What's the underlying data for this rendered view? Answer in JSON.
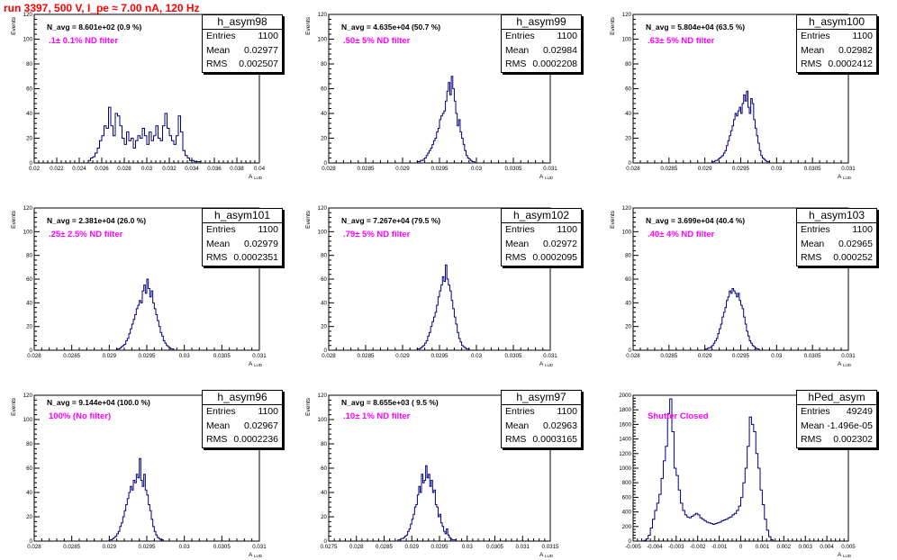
{
  "title": "run 3397,   500 V, I_pe ≈ 7.00 nA, 120 Hz",
  "colors": {
    "hist": "#000080",
    "title": "#ff0000",
    "annotation": "#ff00ff"
  },
  "stat_labels": {
    "entries": "Entries",
    "mean": "Mean",
    "rms": "RMS"
  },
  "chart_data": [
    {
      "type": "bar",
      "name": "h_asym98",
      "navg": "N_avg = 8.601e+02 (0.9 %)",
      "filter": ".1± 0.1% ND filter",
      "stats": {
        "entries": "1100",
        "mean": "0.02977",
        "rms": "0.002507"
      },
      "xlabel": "A",
      "xlabel_sub": "LUD",
      "ylabel": "Events",
      "xlim": [
        0.02,
        0.04
      ],
      "ylim": [
        0,
        120
      ],
      "xticks": [
        0.02,
        0.022,
        0.024,
        0.026,
        0.028,
        0.03,
        0.032,
        0.034,
        0.036,
        0.038,
        0.04
      ],
      "xticklabels": [
        "0.02",
        "0.022",
        "0.024",
        "0.026",
        "0.028",
        "0.03",
        "0.032",
        "0.034",
        "0.036",
        "0.038",
        "0.04"
      ],
      "yticks": [
        0,
        20,
        40,
        60,
        80,
        100,
        120
      ],
      "yticklabels": [
        "0",
        "20",
        "40",
        "60",
        "80",
        "100",
        "120"
      ],
      "bin_start": 0.0248,
      "bin_width": 0.0002,
      "values": [
        2,
        4,
        5,
        8,
        12,
        18,
        22,
        30,
        28,
        45,
        30,
        22,
        40,
        38,
        30,
        20,
        15,
        25,
        18,
        20,
        12,
        18,
        22,
        20,
        28,
        22,
        15,
        25,
        18,
        22,
        30,
        20,
        18,
        30,
        40,
        28,
        22,
        18,
        15,
        22,
        38,
        25,
        10,
        6,
        4,
        2,
        2,
        1,
        1,
        1
      ]
    },
    {
      "type": "bar",
      "name": "h_asym99",
      "navg": "N_avg = 4.635e+04 (50.7 %)",
      "filter": ".50± 5% ND filter",
      "stats": {
        "entries": "1100",
        "mean": "0.02984",
        "rms": "0.0002208"
      },
      "xlabel": "A",
      "xlabel_sub": "LUD",
      "ylabel": "Events",
      "xlim": [
        0.028,
        0.031
      ],
      "ylim": [
        0,
        120
      ],
      "xticks": [
        0.028,
        0.0285,
        0.029,
        0.0295,
        0.03,
        0.0305,
        0.031
      ],
      "xticklabels": [
        "0.028",
        "0.0285",
        "0.029",
        "0.0295",
        "0.03",
        "0.0305",
        "0.031"
      ],
      "yticks": [
        0,
        20,
        40,
        60,
        80,
        100,
        120
      ],
      "yticklabels": [
        "0",
        "20",
        "40",
        "60",
        "80",
        "100",
        "120"
      ],
      "bin_start": 0.0292,
      "bin_width": 2e-05,
      "values": [
        1,
        1,
        2,
        2,
        3,
        4,
        6,
        8,
        10,
        12,
        15,
        18,
        20,
        25,
        28,
        35,
        38,
        40,
        42,
        50,
        58,
        65,
        55,
        70,
        60,
        50,
        40,
        30,
        35,
        25,
        20,
        15,
        10,
        6,
        4,
        3,
        2,
        1,
        1
      ]
    },
    {
      "type": "bar",
      "name": "h_asym100",
      "navg": "N_avg = 5.804e+04 (63.5 %)",
      "filter": ".63± 5% ND filter",
      "stats": {
        "entries": "1100",
        "mean": "0.02982",
        "rms": "0.0002412"
      },
      "xlabel": "A",
      "xlabel_sub": "LUD",
      "ylabel": "Events",
      "xlim": [
        0.028,
        0.031
      ],
      "ylim": [
        0,
        120
      ],
      "xticks": [
        0.028,
        0.0285,
        0.029,
        0.0295,
        0.03,
        0.0305,
        0.031
      ],
      "xticklabels": [
        "0.028",
        "0.0285",
        "0.029",
        "0.0295",
        "0.03",
        "0.0305",
        "0.031"
      ],
      "yticks": [
        0,
        20,
        40,
        60,
        80,
        100,
        120
      ],
      "yticklabels": [
        "0",
        "20",
        "40",
        "60",
        "80",
        "100",
        "120"
      ],
      "bin_start": 0.0291,
      "bin_width": 2e-05,
      "values": [
        1,
        1,
        2,
        2,
        3,
        4,
        5,
        6,
        8,
        10,
        14,
        18,
        22,
        26,
        30,
        35,
        40,
        38,
        42,
        45,
        40,
        48,
        55,
        50,
        58,
        45,
        40,
        52,
        48,
        35,
        28,
        22,
        16,
        10,
        6,
        4,
        3,
        2,
        1,
        1
      ]
    },
    {
      "type": "bar",
      "name": "h_asym101",
      "navg": "N_avg = 2.381e+04 (26.0 %)",
      "filter": ".25± 2.5% ND filter",
      "stats": {
        "entries": "1100",
        "mean": "0.02979",
        "rms": "0.0002351"
      },
      "xlabel": "A",
      "xlabel_sub": "LUD",
      "ylabel": "Events",
      "xlim": [
        0.028,
        0.031
      ],
      "ylim": [
        0,
        120
      ],
      "xticks": [
        0.028,
        0.0285,
        0.029,
        0.0295,
        0.03,
        0.0305,
        0.031
      ],
      "xticklabels": [
        "0.028",
        "0.0285",
        "0.029",
        "0.0295",
        "0.03",
        "0.0305",
        "0.031"
      ],
      "yticks": [
        0,
        20,
        40,
        60,
        80,
        100,
        120
      ],
      "yticklabels": [
        "0",
        "20",
        "40",
        "60",
        "80",
        "100",
        "120"
      ],
      "bin_start": 0.0291,
      "bin_width": 2e-05,
      "values": [
        1,
        1,
        2,
        3,
        4,
        5,
        8,
        10,
        14,
        18,
        22,
        26,
        30,
        35,
        38,
        42,
        40,
        50,
        55,
        48,
        60,
        52,
        45,
        50,
        40,
        35,
        30,
        25,
        20,
        15,
        12,
        8,
        6,
        4,
        3,
        2,
        1,
        1
      ]
    },
    {
      "type": "bar",
      "name": "h_asym102",
      "navg": "N_avg = 7.267e+04 (79.5 %)",
      "filter": ".79± 5% ND filter",
      "stats": {
        "entries": "1100",
        "mean": "0.02972",
        "rms": "0.0002095"
      },
      "xlabel": "A",
      "xlabel_sub": "LUD",
      "ylabel": "Events",
      "xlim": [
        0.028,
        0.031
      ],
      "ylim": [
        0,
        120
      ],
      "xticks": [
        0.028,
        0.0285,
        0.029,
        0.0295,
        0.03,
        0.0305,
        0.031
      ],
      "xticklabels": [
        "0.028",
        "0.0285",
        "0.029",
        "0.0295",
        "0.03",
        "0.0305",
        "0.031"
      ],
      "yticks": [
        0,
        20,
        40,
        60,
        80,
        100,
        120
      ],
      "yticklabels": [
        "0",
        "20",
        "40",
        "60",
        "80",
        "100",
        "120"
      ],
      "bin_start": 0.0292,
      "bin_width": 2e-05,
      "values": [
        1,
        1,
        2,
        3,
        4,
        6,
        8,
        12,
        15,
        20,
        24,
        28,
        32,
        38,
        45,
        50,
        55,
        62,
        58,
        72,
        60,
        55,
        50,
        42,
        35,
        28,
        22,
        15,
        10,
        7,
        4,
        3,
        2,
        1,
        1
      ]
    },
    {
      "type": "bar",
      "name": "h_asym103",
      "navg": "N_avg = 3.699e+04 (40.4 %)",
      "filter": ".40± 4% ND filter",
      "stats": {
        "entries": "1100",
        "mean": "0.02965",
        "rms": "0.000252"
      },
      "xlabel": "A",
      "xlabel_sub": "LUD",
      "ylabel": "Events",
      "xlim": [
        0.028,
        0.031
      ],
      "ylim": [
        0,
        120
      ],
      "xticks": [
        0.028,
        0.0285,
        0.029,
        0.0295,
        0.03,
        0.0305,
        0.031
      ],
      "xticklabels": [
        "0.028",
        "0.0285",
        "0.029",
        "0.0295",
        "0.03",
        "0.0305",
        "0.031"
      ],
      "yticks": [
        0,
        20,
        40,
        60,
        80,
        100,
        120
      ],
      "yticklabels": [
        "0",
        "20",
        "40",
        "60",
        "80",
        "100",
        "120"
      ],
      "bin_start": 0.029,
      "bin_width": 2e-05,
      "values": [
        1,
        1,
        2,
        2,
        3,
        4,
        6,
        8,
        10,
        14,
        18,
        22,
        28,
        32,
        36,
        42,
        45,
        50,
        48,
        52,
        50,
        48,
        45,
        48,
        42,
        38,
        35,
        28,
        22,
        16,
        12,
        8,
        6,
        4,
        3,
        2,
        1,
        1
      ]
    },
    {
      "type": "bar",
      "name": "h_asym96",
      "navg": "N_avg = 9.144e+04 (100.0 %)",
      "filter": "100% (No filter)",
      "stats": {
        "entries": "1100",
        "mean": "0.02967",
        "rms": "0.0002236"
      },
      "xlabel": "A",
      "xlabel_sub": "LUD",
      "ylabel": "Events",
      "xlim": [
        0.028,
        0.031
      ],
      "ylim": [
        0,
        120
      ],
      "xticks": [
        0.028,
        0.0285,
        0.029,
        0.0295,
        0.03,
        0.0305,
        0.031
      ],
      "xticklabels": [
        "0.028",
        "0.0285",
        "0.029",
        "0.0295",
        "0.03",
        "0.0305",
        "0.031"
      ],
      "yticks": [
        0,
        20,
        40,
        60,
        80,
        100,
        120
      ],
      "yticklabels": [
        "0",
        "20",
        "40",
        "60",
        "80",
        "100",
        "120"
      ],
      "bin_start": 0.029,
      "bin_width": 2e-05,
      "values": [
        1,
        1,
        2,
        3,
        4,
        6,
        8,
        12,
        15,
        20,
        25,
        30,
        35,
        40,
        45,
        42,
        50,
        48,
        55,
        52,
        68,
        50,
        45,
        55,
        42,
        38,
        30,
        25,
        18,
        12,
        8,
        5,
        3,
        2,
        1,
        1
      ]
    },
    {
      "type": "bar",
      "name": "h_asym97",
      "navg": "N_avg = 8.655e+03 ( 9.5 %)",
      "filter": ".10± 1% ND filter",
      "stats": {
        "entries": "1100",
        "mean": "0.02963",
        "rms": "0.0003165"
      },
      "xlabel": "A",
      "xlabel_sub": "LUD",
      "ylabel": "Events",
      "xlim": [
        0.0275,
        0.0315
      ],
      "ylim": [
        0,
        120
      ],
      "xticks": [
        0.0275,
        0.028,
        0.0285,
        0.029,
        0.0295,
        0.03,
        0.0305,
        0.031,
        0.0315
      ],
      "xticklabels": [
        "0.0275",
        "0.028",
        "0.0285",
        "0.029",
        "0.0295",
        "0.03",
        "0.0305",
        "0.031",
        "0.0315"
      ],
      "yticks": [
        0,
        20,
        40,
        60,
        80,
        100,
        120
      ],
      "yticklabels": [
        "0",
        "20",
        "40",
        "60",
        "80",
        "100",
        "120"
      ],
      "bin_start": 0.02875,
      "bin_width": 2.5e-05,
      "values": [
        1,
        1,
        2,
        2,
        3,
        4,
        5,
        8,
        10,
        14,
        18,
        22,
        28,
        30,
        38,
        45,
        40,
        55,
        48,
        50,
        62,
        52,
        55,
        45,
        50,
        40,
        42,
        30,
        28,
        20,
        22,
        15,
        12,
        8,
        6,
        10,
        5,
        3,
        2,
        1,
        1,
        1
      ]
    },
    {
      "type": "bar",
      "name": "hPed_asym",
      "navg": "",
      "filter": "Shutter Closed",
      "stats": {
        "entries": "49249",
        "mean": "-1.496e-05",
        "rms": "0.002302"
      },
      "xlabel": "A",
      "xlabel_sub": "LUD",
      "ylabel": "",
      "xlim": [
        -0.005,
        0.005
      ],
      "ylim": [
        0,
        2000
      ],
      "xticks": [
        -0.005,
        -0.004,
        -0.003,
        -0.002,
        -0.001,
        0,
        0.001,
        0.002,
        0.003,
        0.004,
        0.005
      ],
      "xticklabels": [
        "-0.005",
        "-0.004",
        "-0.003",
        "-0.002",
        "-0.001",
        "0",
        "0.001",
        "0.002",
        "0.003",
        "0.004",
        "0.005"
      ],
      "yticks": [
        0,
        200,
        400,
        600,
        800,
        1000,
        1200,
        1400,
        1600,
        1800,
        2000
      ],
      "yticklabels": [
        "0",
        "200",
        "400",
        "600",
        "800",
        "1000",
        "1200",
        "1400",
        "1600",
        "1800",
        "2000"
      ],
      "bin_start": -0.0045,
      "bin_width": 0.0001,
      "values": [
        10,
        30,
        80,
        180,
        300,
        420,
        520,
        640,
        860,
        1100,
        1300,
        1750,
        1950,
        1500,
        1000,
        900,
        700,
        520,
        420,
        360,
        330,
        320,
        340,
        360,
        380,
        360,
        320,
        300,
        280,
        260,
        250,
        240,
        230,
        240,
        250,
        260,
        280,
        290,
        300,
        320,
        330,
        360,
        380,
        420,
        480,
        600,
        800,
        1000,
        1300,
        1700,
        1600,
        1500,
        1200,
        1000,
        700,
        500,
        300,
        150,
        60,
        20
      ]
    }
  ]
}
